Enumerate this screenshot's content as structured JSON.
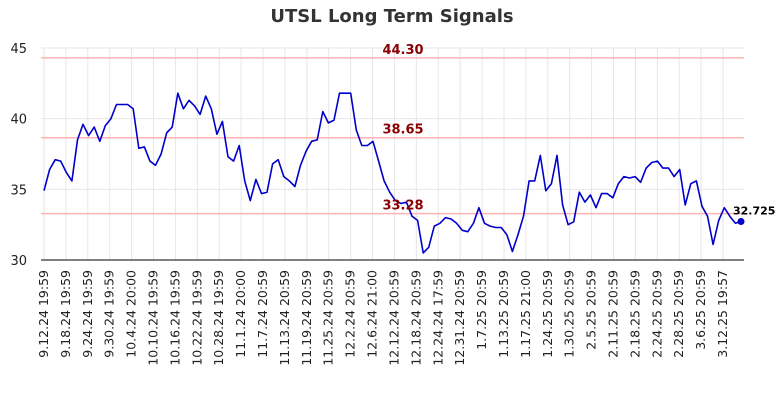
{
  "chart_data": {
    "type": "line",
    "title": "UTSL Long Term Signals",
    "xlabel": "",
    "ylabel": "",
    "ylim": [
      30,
      45
    ],
    "y_ticks": [
      30,
      35,
      40,
      45
    ],
    "grid": true,
    "x_tick_labels": [
      "9.12.24 19:59",
      "9.18.24 19:59",
      "9.24.24 19:59",
      "9.30.24 19:59",
      "10.4.24 20:00",
      "10.10.24 19:59",
      "10.16.24 19:59",
      "10.22.24 19:59",
      "10.28.24 19:59",
      "11.1.24 20:00",
      "11.7.24 20:59",
      "11.13.24 20:59",
      "11.19.24 20:59",
      "11.25.24 20:59",
      "12.2.24 20:59",
      "12.6.24 21:00",
      "12.12.24 20:59",
      "12.18.24 20:59",
      "12.24.24 17:59",
      "12.31.24 20:59",
      "1.7.25 20:59",
      "1.13.25 20:59",
      "1.17.25 21:00",
      "1.24.25 20:59",
      "1.30.25 20:59",
      "2.5.25 20:59",
      "2.11.25 20:59",
      "2.18.25 20:59",
      "2.24.25 20:59",
      "2.28.25 20:59",
      "3.6.25 20:59",
      "3.12.25 19:57"
    ],
    "levels": [
      {
        "value": 44.3,
        "label": "44.30"
      },
      {
        "value": 38.65,
        "label": "38.65"
      },
      {
        "value": 33.28,
        "label": "33.28"
      }
    ],
    "last_value_label": "32.725",
    "colors": {
      "line": "#0000cc",
      "level": "#ffb3b3",
      "level_text": "#8b0000",
      "grid": "#e6e6e6",
      "marker": "#0000cc"
    },
    "series": [
      {
        "values": [
          34.9,
          36.4,
          37.1,
          37.0,
          36.2,
          35.6,
          38.5,
          39.6,
          38.8,
          39.4,
          38.4,
          39.5,
          40.0,
          41.0,
          41.0,
          41.0,
          40.7,
          37.9,
          38.0,
          37.0,
          36.7,
          37.5,
          39.0,
          39.4,
          41.8,
          40.7,
          41.3,
          40.9,
          40.3,
          41.6,
          40.7,
          38.9,
          39.8,
          37.3,
          37.0,
          38.1,
          35.6,
          34.2,
          35.7,
          34.7,
          34.8,
          36.8,
          37.1,
          35.9,
          35.6,
          35.2,
          36.7,
          37.7,
          38.4,
          38.5,
          40.5,
          39.7,
          39.9,
          41.8,
          41.8,
          41.8,
          39.2,
          38.1,
          38.1,
          38.4,
          37.0,
          35.6,
          34.8,
          34.2,
          34.0,
          34.1,
          33.1,
          32.8,
          30.5,
          30.9,
          32.4,
          32.6,
          33.0,
          32.9,
          32.6,
          32.1,
          32.0,
          32.6,
          33.7,
          32.6,
          32.4,
          32.3,
          32.3,
          31.8,
          30.6,
          31.8,
          33.1,
          35.6,
          35.6,
          37.4,
          34.9,
          35.4,
          37.4,
          33.9,
          32.5,
          32.7,
          34.8,
          34.1,
          34.6,
          33.7,
          34.7,
          34.7,
          34.4,
          35.4,
          35.9,
          35.8,
          35.9,
          35.5,
          36.5,
          36.9,
          37.0,
          36.5,
          36.5,
          35.9,
          36.4,
          33.9,
          35.4,
          35.6,
          33.8,
          33.1,
          31.1,
          32.8,
          33.7,
          33.1,
          32.6,
          32.725
        ]
      }
    ]
  }
}
